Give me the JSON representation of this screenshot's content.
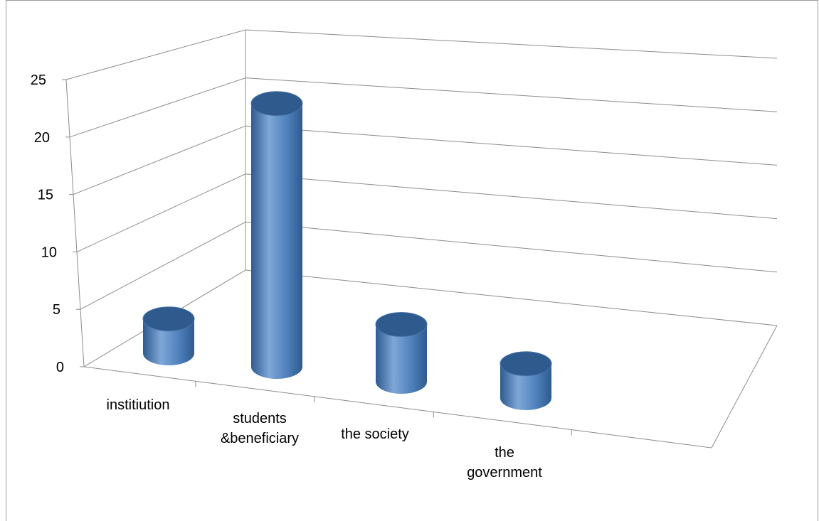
{
  "chart_data": {
    "type": "bar",
    "style": "3d-cylinder",
    "categories": [
      [
        "institiution"
      ],
      [
        "students",
        "&beneficiary"
      ],
      [
        "the society"
      ],
      [
        "the",
        "government"
      ]
    ],
    "values": [
      3,
      23,
      5,
      3
    ],
    "ylim": [
      0,
      25
    ],
    "yticks": [
      0,
      5,
      10,
      15,
      20,
      25
    ],
    "grid": true,
    "legend": "none",
    "colors": {
      "bar": "#4f81bd",
      "bar_dark": "#2e5a8e",
      "bar_light": "#7fa7d8",
      "grid": "#8c8c8c"
    }
  }
}
